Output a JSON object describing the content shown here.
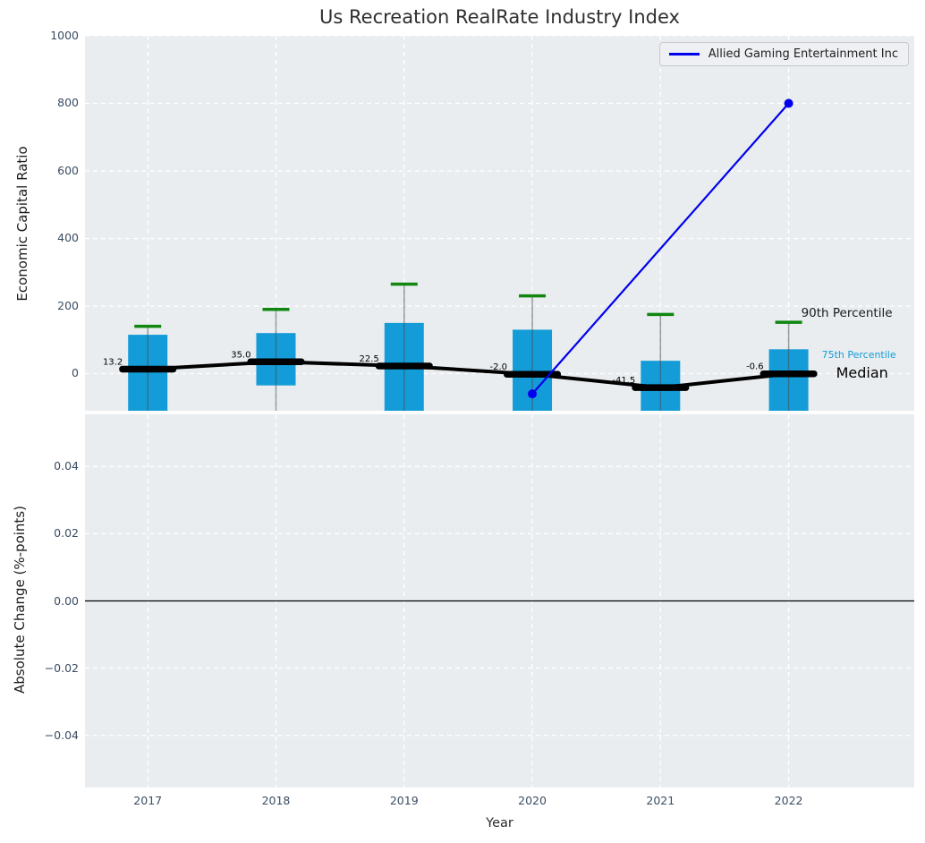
{
  "title": "Us Recreation RealRate Industry Index",
  "chart_data": {
    "type": "combo",
    "title": "Us Recreation RealRate Industry Index",
    "x": {
      "label": "Year",
      "years": [
        2017,
        2018,
        2019,
        2020,
        2021,
        2022
      ],
      "tick_labels": [
        "2017",
        "2018",
        "2019",
        "2020",
        "2021",
        "2022"
      ],
      "xlim": [
        2016.51,
        2022.98
      ]
    },
    "top_panel": {
      "ylabel": "Economic Capital Ratio",
      "ylim": [
        -110,
        1000
      ],
      "ytick_values": [
        0,
        200,
        400,
        600,
        800,
        1000
      ],
      "ytick_labels": [
        "0",
        "200",
        "400",
        "600",
        "800",
        "1000"
      ],
      "grid": true,
      "boxes": {
        "p90_caps": [
          140,
          190,
          265,
          230,
          175,
          152
        ],
        "p75_bar_tops": [
          115,
          120,
          150,
          130,
          38,
          72
        ],
        "p25_bar_bottoms": [
          null,
          -35,
          null,
          null,
          null,
          null
        ],
        "medians": [
          13.2,
          35.0,
          22.5,
          -2.0,
          -41.5,
          -0.6
        ],
        "median_labels": [
          "13.2",
          "35.0",
          "22.5",
          "-2.0",
          "-41.5",
          "-0.6"
        ],
        "note": "null bar bottoms and all lower whiskers extend below the visible axis"
      },
      "series": [
        {
          "name": "Allied Gaming Entertainment Inc",
          "color": "#0000ee",
          "points": [
            [
              2020,
              -60
            ],
            [
              2022,
              800
            ]
          ]
        }
      ],
      "annotations": [
        {
          "text": "90th Percentile",
          "y_value": 178,
          "dx": 14,
          "size": 13.5,
          "color": "#1a1a1a"
        },
        {
          "text": "75th Percentile",
          "y_value": 56,
          "dx": 37,
          "size": 11,
          "color": "#149cd8"
        },
        {
          "text": "Median",
          "y_value": 2,
          "dx": 53,
          "size": 16,
          "color": "#000000"
        }
      ]
    },
    "bottom_panel": {
      "ylabel": "Absolute Change (%-points)",
      "ylim": [
        -0.0555,
        0.0555
      ],
      "ytick_values": [
        0.04,
        0.02,
        0.0,
        -0.02,
        -0.04
      ],
      "ytick_labels": [
        "0.04",
        "0.02",
        "0.00",
        "−0.02",
        "−0.04"
      ],
      "grid": true,
      "zero_line": true,
      "series": []
    },
    "legend": {
      "position": "upper right",
      "entries": [
        {
          "label": "Allied Gaming Entertainment Inc",
          "color": "#0000ee"
        }
      ]
    },
    "colors": {
      "bar": "#149cd8",
      "p90_cap": "#118611",
      "whisker": "rgba(70,80,85,0.55)",
      "median": "#000000",
      "axes_bg": "#e9edef",
      "grid": "#ffffff",
      "tick_label": "#3b4d63"
    }
  }
}
